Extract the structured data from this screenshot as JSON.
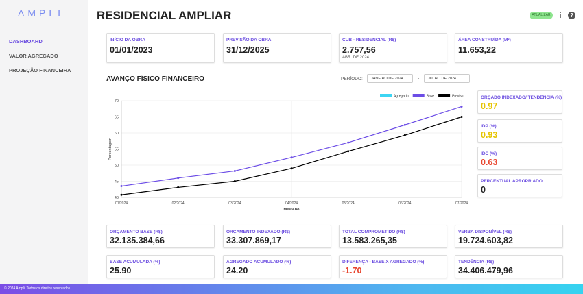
{
  "logo": "AMPLI",
  "sidebar": {
    "items": [
      "DASHBOARD",
      "VALOR AGREGADO",
      "PROJEÇÃO FINANCEIRA"
    ]
  },
  "header": {
    "title": "RESIDENCIAL AMPLIAR",
    "button": "ATUALIZAR",
    "help": "?"
  },
  "top_cards": [
    {
      "label": "INÍCIO DA OBRA",
      "value": "01/01/2023"
    },
    {
      "label": "PREVISÃO DA OBRA",
      "value": "31/12/2025"
    },
    {
      "label": "CUB - RESIDENCIAL (R$)",
      "value": "2.757,56",
      "note": "ABR. DE 2024"
    },
    {
      "label": "ÁREA CONSTRUÍDA (M²)",
      "value": "11.653,22"
    }
  ],
  "section": {
    "title": "AVANÇO FÍSICO FINANCEIRO",
    "period_label": "PERÍODO:",
    "start": "JANEIRO DE 2024",
    "separator": "-",
    "end": "JULHO DE 2024"
  },
  "chart_data": {
    "type": "line",
    "x_label": "Mês/Ano",
    "y_label": "Porcentagem",
    "categories": [
      "01/2024",
      "02/2024",
      "03/2024",
      "04/2024",
      "05/2024",
      "06/2024",
      "07/2024"
    ],
    "series": [
      {
        "name": "Agregado",
        "color": "#3dd5f3",
        "values": [
          null,
          null,
          null,
          null,
          null,
          null,
          null
        ]
      },
      {
        "name": "Base",
        "color": "#6c4de6",
        "values": [
          43.5,
          46,
          48.2,
          52.4,
          57,
          62.5,
          68.2
        ]
      },
      {
        "name": "Previsto",
        "color": "#000000",
        "values": [
          40.8,
          43.1,
          45,
          49,
          54.3,
          59.3,
          65
        ]
      }
    ],
    "ylim": [
      40,
      70
    ],
    "yticks": [
      40,
      45,
      50,
      55,
      60,
      65,
      70
    ],
    "grid": true,
    "legend": "top-right"
  },
  "side_cards": [
    {
      "label": "ORÇADO INDEXADO/ TENDÊNCIA (%)",
      "value": "0.97"
    },
    {
      "label": "IDP (%)",
      "value": "0.93"
    },
    {
      "label": "IDC (%)",
      "value": "0.63"
    },
    {
      "label": "PERCENTUAL APROPRIADO",
      "value": "0"
    }
  ],
  "bottom_cards": [
    {
      "label": "ORÇAMENTO BASE (R$)",
      "value": "32.135.384,66"
    },
    {
      "label": "ORÇAMENTO INDEXADO (R$)",
      "value": "33.307.869,17"
    },
    {
      "label": "TOTAL COMPROMETIDO (R$)",
      "value": "13.583.265,35"
    },
    {
      "label": "VERBA DISPONÍVEL (R$)",
      "value": "19.724.603,82"
    },
    {
      "label": "BASE ACUMULADA (%)",
      "value": "25.90"
    },
    {
      "label": "AGREGADO ACUMULADO (%)",
      "value": "24.20"
    },
    {
      "label": "DIFERENÇA - BASE X AGREGADO (%)",
      "value": "-1.70"
    },
    {
      "label": "TENDÊNCIA (R$)",
      "value": "34.406.479,96"
    }
  ],
  "footer": "© 2024 Ampli. Todos os direitos reservados."
}
